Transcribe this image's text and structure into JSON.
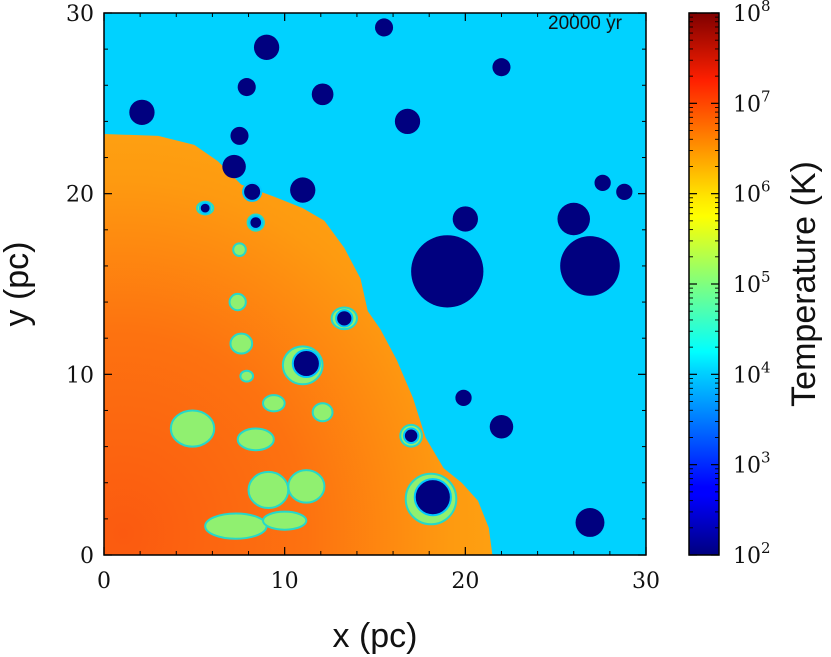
{
  "chart_data": {
    "type": "heatmap",
    "title": "",
    "time_label": "20000 yr",
    "xlabel": "x (pc)",
    "ylabel": "y (pc)",
    "xlim": [
      0,
      30
    ],
    "ylim": [
      0,
      30
    ],
    "x_ticks": [
      0,
      10,
      20,
      30
    ],
    "y_ticks": [
      0,
      10,
      20,
      30
    ],
    "x_tick_labels": [
      "0",
      "10",
      "20",
      "30"
    ],
    "y_tick_labels": [
      "0",
      "10",
      "20",
      "30"
    ],
    "colorbar": {
      "label": "Temperature (K)",
      "scale": "log",
      "range": [
        100,
        100000000
      ],
      "tick_exponents": [
        2,
        3,
        4,
        5,
        6,
        7,
        8
      ],
      "tick_bases": [
        "10",
        "10",
        "10",
        "10",
        "10",
        "10",
        "10"
      ],
      "tick_powers": [
        "2",
        "3",
        "4",
        "5",
        "6",
        "7",
        "8"
      ],
      "colormap": "jet"
    },
    "ambient_medium": {
      "log_temperature": 4.3,
      "color": "#00d2ff"
    },
    "hot_region": {
      "boundary_points": [
        [
          0,
          23.3
        ],
        [
          3,
          23.2
        ],
        [
          5,
          22.7
        ],
        [
          6.3,
          21.8
        ],
        [
          7.6,
          20.5
        ],
        [
          9.5,
          19.8
        ],
        [
          11,
          19.2
        ],
        [
          12.2,
          18.5
        ],
        [
          13.3,
          17
        ],
        [
          14.2,
          15.3
        ],
        [
          14.6,
          13.5
        ],
        [
          15.3,
          12.5
        ],
        [
          16.2,
          10.8
        ],
        [
          17.1,
          8.7
        ],
        [
          17.8,
          6.5
        ],
        [
          18.8,
          4.8
        ],
        [
          19.8,
          4
        ],
        [
          20.7,
          3
        ],
        [
          21.3,
          1.5
        ],
        [
          21.5,
          0
        ],
        [
          0,
          0
        ]
      ],
      "log_temperature_core": 7.0,
      "log_temperature_edge": 6.6
    },
    "cold_clouds": [
      {
        "x": 2.1,
        "y": 24.5,
        "r": 0.7
      },
      {
        "x": 9.0,
        "y": 28.1,
        "r": 0.7
      },
      {
        "x": 15.5,
        "y": 29.2,
        "r": 0.5
      },
      {
        "x": 7.9,
        "y": 25.9,
        "r": 0.5
      },
      {
        "x": 12.1,
        "y": 25.5,
        "r": 0.6
      },
      {
        "x": 22.0,
        "y": 27.0,
        "r": 0.5
      },
      {
        "x": 16.8,
        "y": 24.0,
        "r": 0.7
      },
      {
        "x": 7.5,
        "y": 23.2,
        "r": 0.5
      },
      {
        "x": 7.2,
        "y": 21.5,
        "r": 0.65
      },
      {
        "x": 11.0,
        "y": 20.2,
        "r": 0.7
      },
      {
        "x": 8.2,
        "y": 20.1,
        "r": 0.5
      },
      {
        "x": 20.0,
        "y": 18.6,
        "r": 0.7
      },
      {
        "x": 26.0,
        "y": 18.6,
        "r": 0.9
      },
      {
        "x": 27.6,
        "y": 20.6,
        "r": 0.45
      },
      {
        "x": 28.8,
        "y": 20.1,
        "r": 0.45
      },
      {
        "x": 19.0,
        "y": 15.7,
        "r": 2.0
      },
      {
        "x": 26.9,
        "y": 16.0,
        "r": 1.65
      },
      {
        "x": 13.3,
        "y": 13.1,
        "r": 0.45
      },
      {
        "x": 11.2,
        "y": 10.6,
        "r": 0.75
      },
      {
        "x": 19.9,
        "y": 8.7,
        "r": 0.45
      },
      {
        "x": 22.0,
        "y": 7.1,
        "r": 0.65
      },
      {
        "x": 17.0,
        "y": 6.6,
        "r": 0.4
      },
      {
        "x": 18.2,
        "y": 3.2,
        "r": 1.0
      },
      {
        "x": 26.9,
        "y": 1.8,
        "r": 0.8
      },
      {
        "x": 5.6,
        "y": 19.2,
        "r": 0.3
      },
      {
        "x": 8.4,
        "y": 18.4,
        "r": 0.35
      }
    ],
    "warm_clumps": [
      {
        "x": 5.6,
        "y": 19.2,
        "rx": 0.45,
        "ry": 0.35
      },
      {
        "x": 8.4,
        "y": 18.4,
        "rx": 0.45,
        "ry": 0.45
      },
      {
        "x": 7.5,
        "y": 16.9,
        "rx": 0.35,
        "ry": 0.35
      },
      {
        "x": 7.4,
        "y": 14.0,
        "rx": 0.45,
        "ry": 0.45
      },
      {
        "x": 7.6,
        "y": 11.7,
        "rx": 0.6,
        "ry": 0.55
      },
      {
        "x": 7.9,
        "y": 9.9,
        "rx": 0.35,
        "ry": 0.3
      },
      {
        "x": 11.0,
        "y": 10.5,
        "rx": 1.1,
        "ry": 1.05
      },
      {
        "x": 9.4,
        "y": 8.4,
        "rx": 0.6,
        "ry": 0.45
      },
      {
        "x": 12.1,
        "y": 7.9,
        "rx": 0.55,
        "ry": 0.5
      },
      {
        "x": 4.9,
        "y": 7.0,
        "rx": 1.2,
        "ry": 1.0
      },
      {
        "x": 8.4,
        "y": 6.4,
        "rx": 1.0,
        "ry": 0.6
      },
      {
        "x": 13.3,
        "y": 13.1,
        "rx": 0.7,
        "ry": 0.6
      },
      {
        "x": 9.1,
        "y": 3.6,
        "rx": 1.1,
        "ry": 1.0
      },
      {
        "x": 11.2,
        "y": 3.8,
        "rx": 1.0,
        "ry": 0.9
      },
      {
        "x": 7.3,
        "y": 1.6,
        "rx": 1.7,
        "ry": 0.7
      },
      {
        "x": 10.0,
        "y": 1.9,
        "rx": 1.2,
        "ry": 0.5
      },
      {
        "x": 17.0,
        "y": 6.6,
        "rx": 0.6,
        "ry": 0.6
      },
      {
        "x": 18.1,
        "y": 3.1,
        "rx": 1.4,
        "ry": 1.4
      }
    ]
  }
}
